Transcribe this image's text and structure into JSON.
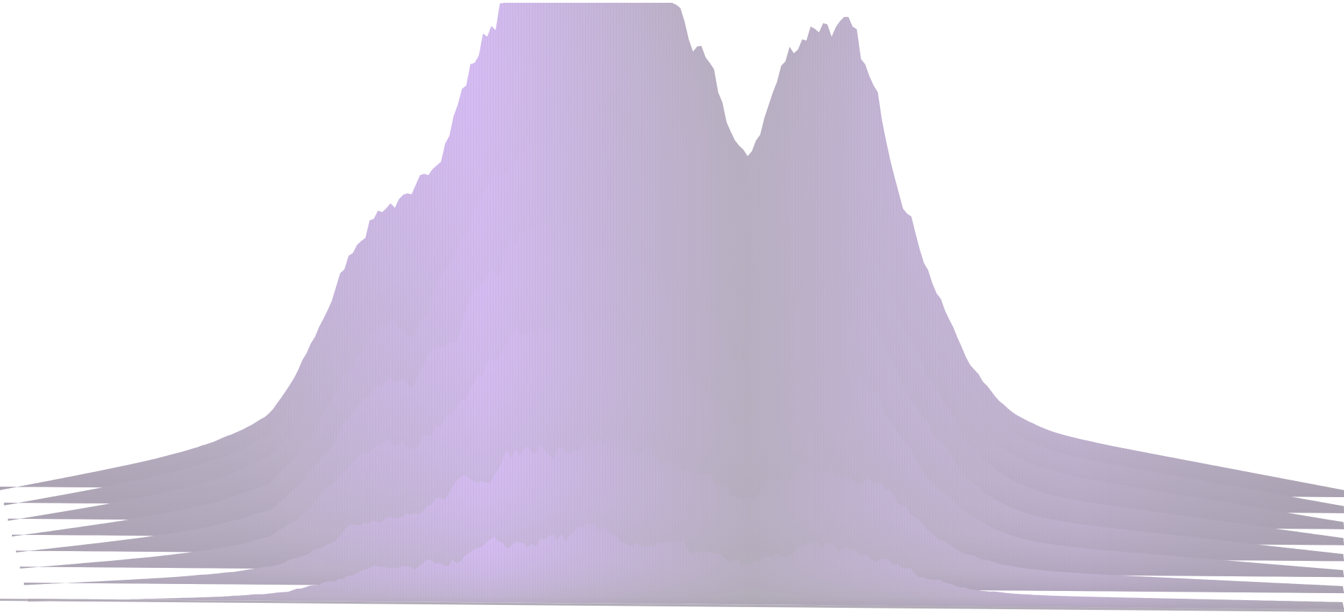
{
  "scene": {
    "subject": "3d-terrain-surface",
    "colors": {
      "background": "#ffffff",
      "lit": "#d6bcf5",
      "shade": "#b3adb9",
      "stripe": "#a79faf"
    },
    "layers": [
      {
        "peak": 0.99,
        "roughness": 0.55
      },
      {
        "peak": 0.93,
        "roughness": 0.5
      },
      {
        "peak": 0.86,
        "roughness": 0.48
      },
      {
        "peak": 0.72,
        "roughness": 0.44
      },
      {
        "peak": 0.58,
        "roughness": 0.4
      },
      {
        "peak": 0.43,
        "roughness": 0.34
      },
      {
        "peak": 0.25,
        "roughness": 0.28
      },
      {
        "peak": 0.11,
        "roughness": 0.22
      }
    ]
  }
}
